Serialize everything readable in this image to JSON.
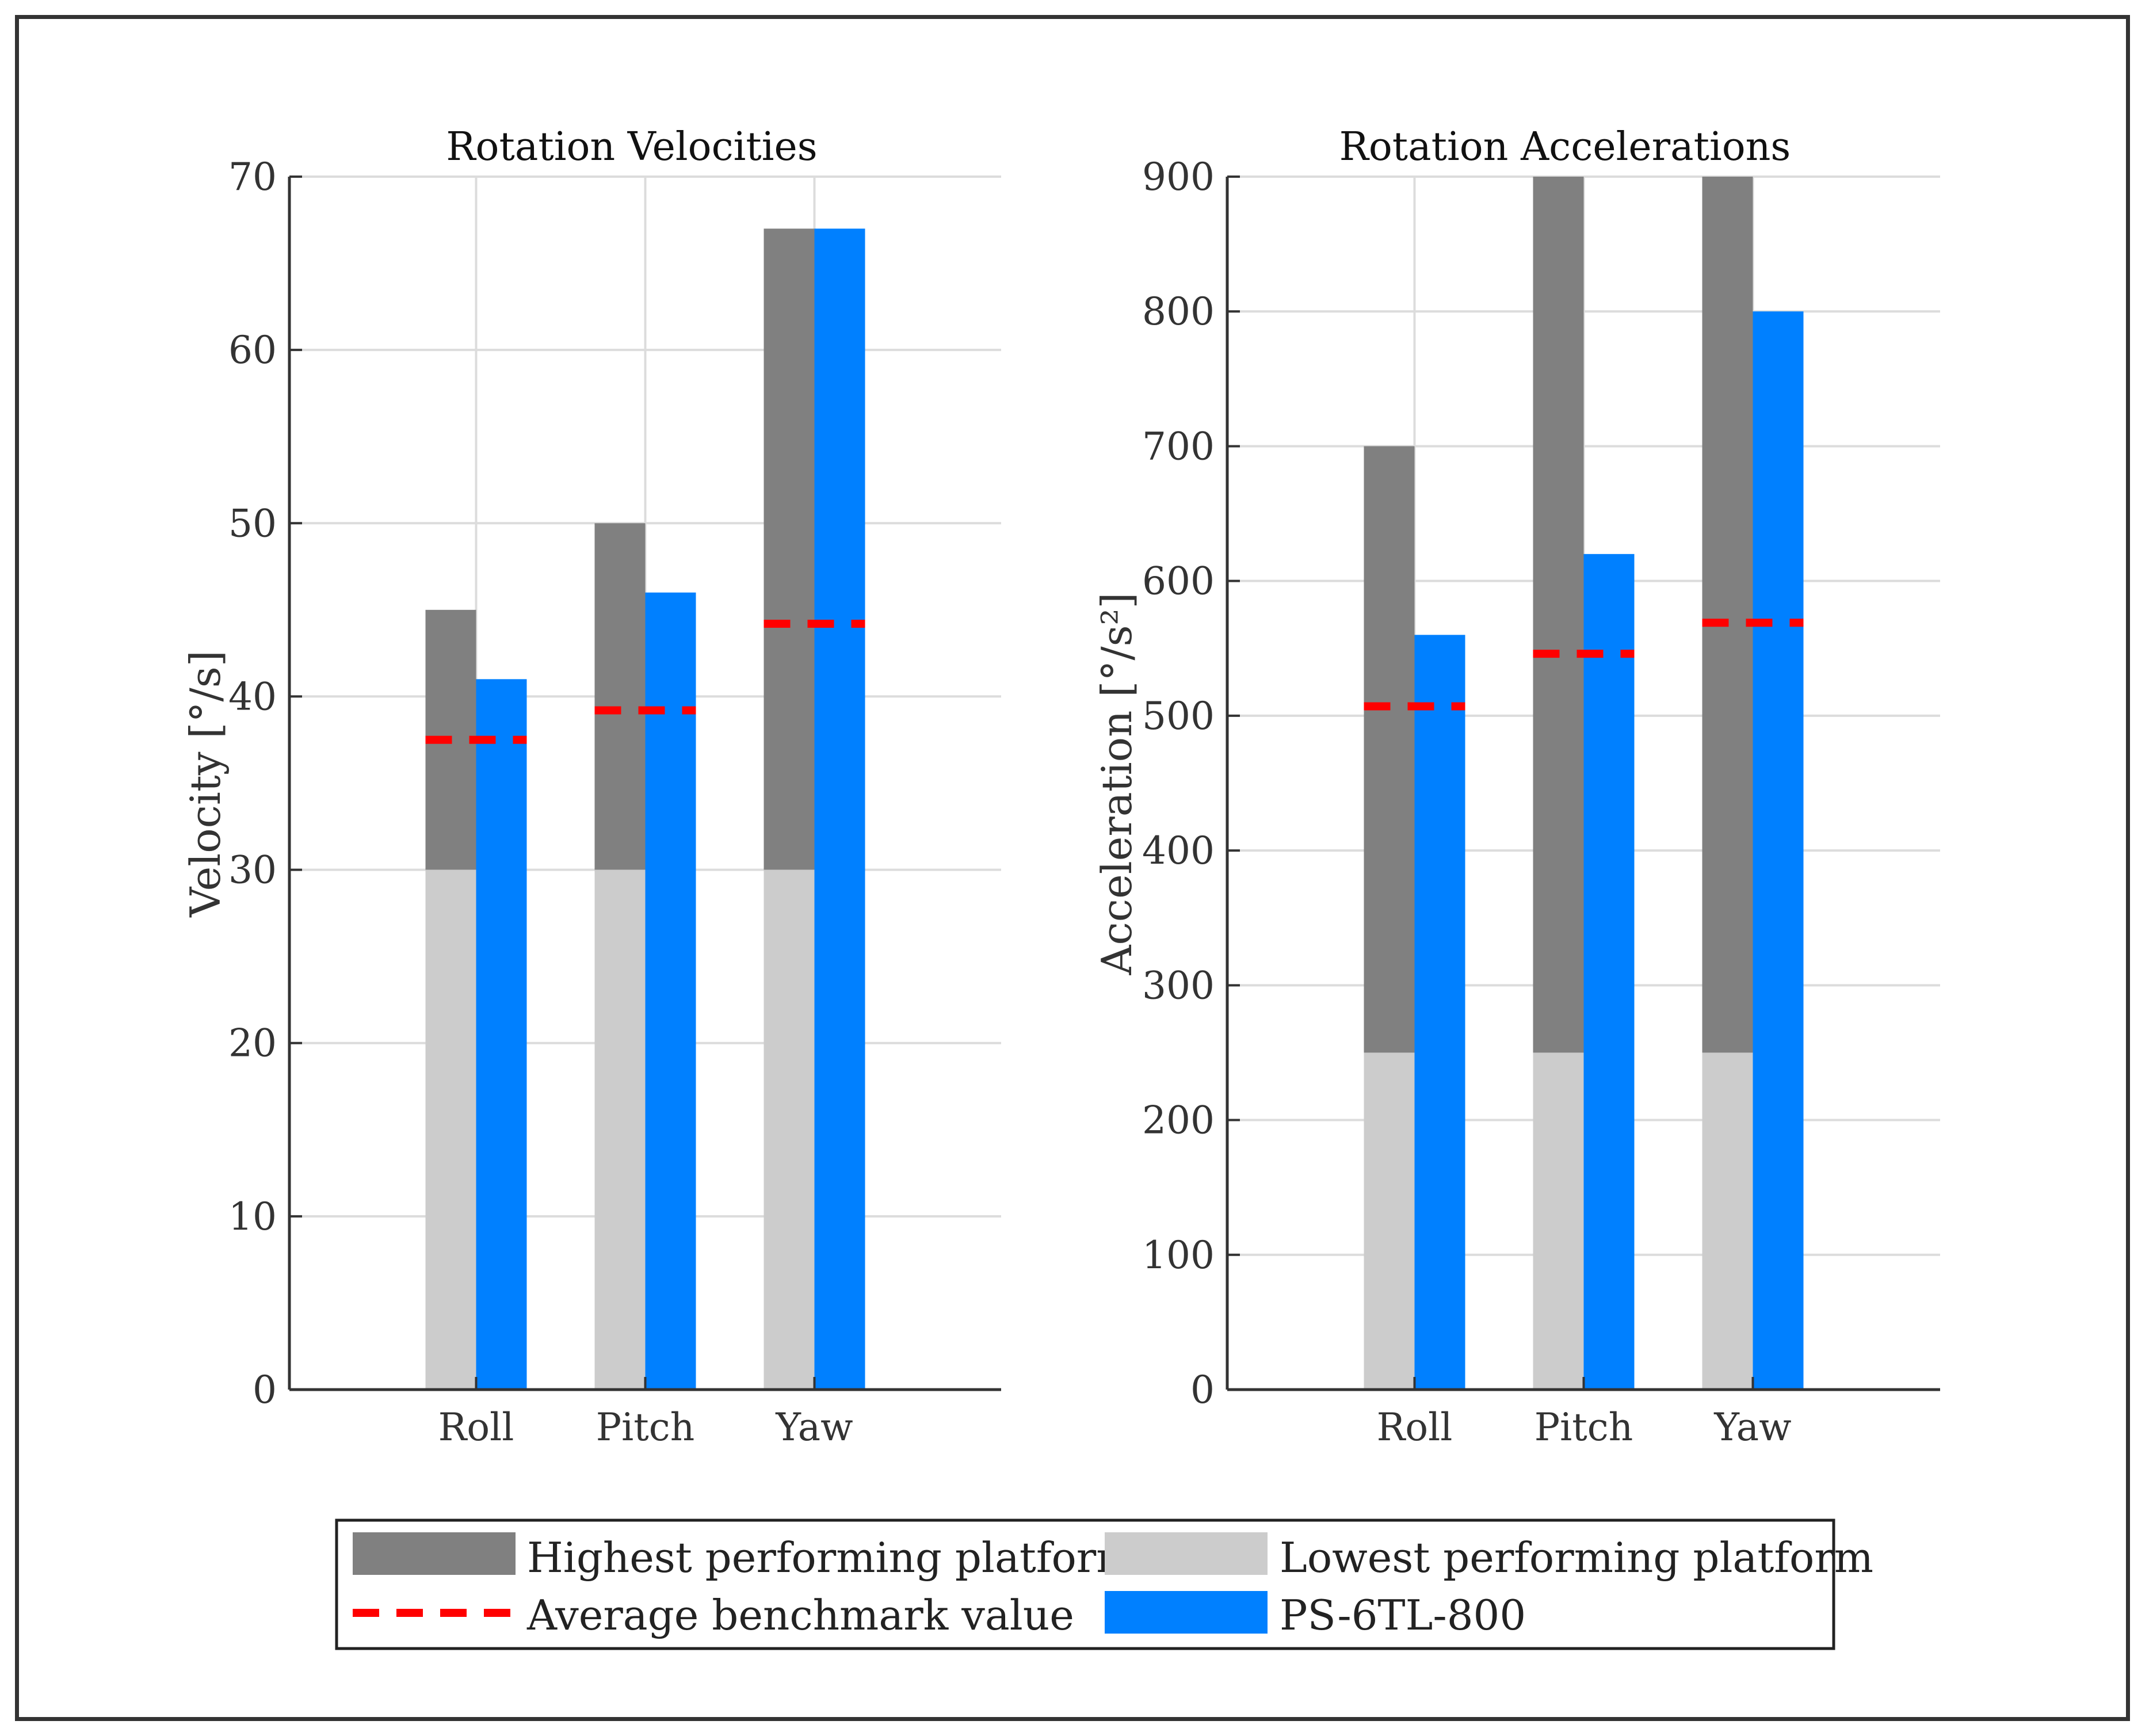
{
  "chart_data": [
    {
      "type": "bar",
      "title": "Rotation Velocities",
      "xlabel": "",
      "ylabel": "Velocity [°/s]",
      "ylim": [
        0,
        70
      ],
      "yticks": [
        0,
        10,
        20,
        30,
        40,
        50,
        60,
        70
      ],
      "grid": true,
      "categories": [
        "Roll",
        "Pitch",
        "Yaw"
      ],
      "series": [
        {
          "name": "Lowest performing platform",
          "values": [
            30,
            30,
            30
          ]
        },
        {
          "name": "Highest performing platform",
          "values": [
            45,
            50,
            67
          ]
        },
        {
          "name": "PS-6TL-800",
          "values": [
            41,
            46,
            67
          ]
        },
        {
          "name": "Average benchmark value",
          "values": [
            37.5,
            39.2,
            44.2
          ]
        }
      ]
    },
    {
      "type": "bar",
      "title": "Rotation Accelerations",
      "xlabel": "",
      "ylabel": "Acceleration [°/s²]",
      "ylim": [
        0,
        900
      ],
      "yticks": [
        0,
        100,
        200,
        300,
        400,
        500,
        600,
        700,
        800,
        900
      ],
      "grid": true,
      "categories": [
        "Roll",
        "Pitch",
        "Yaw"
      ],
      "series": [
        {
          "name": "Lowest performing platform",
          "values": [
            250,
            250,
            250
          ]
        },
        {
          "name": "Highest performing platform",
          "values": [
            700,
            900,
            900
          ]
        },
        {
          "name": "PS-6TL-800",
          "values": [
            560,
            620,
            800
          ]
        },
        {
          "name": "Average benchmark value",
          "values": [
            507,
            546,
            569
          ]
        }
      ]
    }
  ],
  "legend": {
    "placement": "bottom-center",
    "entries": [
      {
        "label": "Highest performing platform",
        "marker": "patch",
        "color": "#808080"
      },
      {
        "label": "Lowest performing platform",
        "marker": "patch",
        "color": "#cccccc"
      },
      {
        "label": "Average benchmark value",
        "marker": "dashed-line",
        "color": "#ff0000"
      },
      {
        "label": "PS-6TL-800",
        "marker": "patch",
        "color": "#0080ff"
      }
    ]
  },
  "colors": {
    "highest": "#808080",
    "lowest": "#cccccc",
    "average": "#ff0000",
    "ps": "#0080ff",
    "grid": "#dcdcdc",
    "axis": "#333333"
  }
}
